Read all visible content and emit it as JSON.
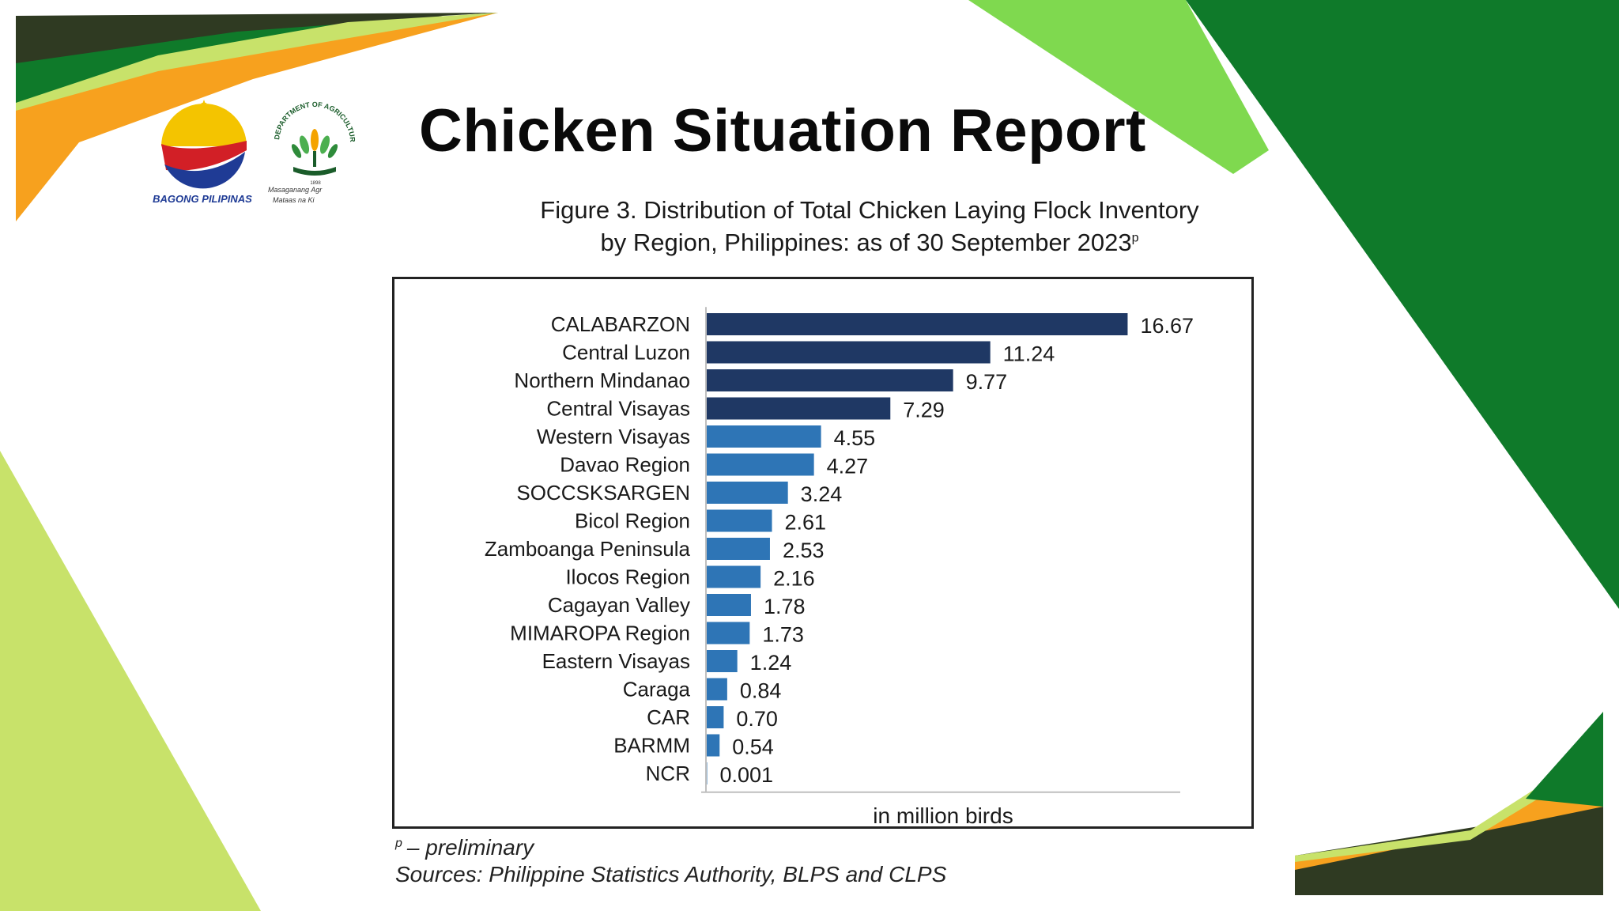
{
  "header": {
    "title": "Chicken Situation Report",
    "logos": {
      "bagong_pilipinas_text": "BAGONG PILIPINAS",
      "da_ring_text": "DEPARTMENT OF AGRICULTURE",
      "da_year": "1898",
      "da_tagline_1": "Masaganang Agr",
      "da_tagline_2": "Mataas na Ki"
    }
  },
  "colors": {
    "dark_green": "#0f7a2a",
    "light_green": "#7fd94f",
    "pale_green": "#c8e26a",
    "orange": "#f7a11e",
    "dark_olive": "#2f3a22",
    "bar_dark": "#1f3864",
    "bar_light": "#2e75b6"
  },
  "figure": {
    "title_line1": "Figure 3. Distribution of Total Chicken Laying Flock Inventory",
    "title_line2": "by Region, Philippines: as of 30 September 2023",
    "title_sup": "p"
  },
  "chart_data": {
    "type": "bar",
    "orientation": "horizontal",
    "title": "Figure 3. Distribution of Total Chicken Laying Flock Inventory by Region, Philippines: as of 30 September 2023p",
    "xlabel": "in million birds",
    "ylabel": "",
    "categories": [
      "CALABARZON",
      "Central Luzon",
      "Northern Mindanao",
      "Central Visayas",
      "Western Visayas",
      "Davao Region",
      "SOCCSKSARGEN",
      "Bicol Region",
      "Zamboanga Peninsula",
      "Ilocos Region",
      "Cagayan Valley",
      "MIMAROPA Region",
      "Eastern Visayas",
      "Caraga",
      "CAR",
      "BARMM",
      "NCR"
    ],
    "values": [
      16.67,
      11.24,
      9.77,
      7.29,
      4.55,
      4.27,
      3.24,
      2.61,
      2.53,
      2.16,
      1.78,
      1.73,
      1.24,
      0.84,
      0.7,
      0.54,
      0.001
    ],
    "value_labels": [
      "16.67",
      "11.24",
      "9.77",
      "7.29",
      "4.55",
      "4.27",
      "3.24",
      "2.61",
      "2.53",
      "2.16",
      "1.78",
      "1.73",
      "1.24",
      "0.84",
      "0.70",
      "0.54",
      "0.001"
    ],
    "highlight_top_n": 4,
    "xlim": [
      0,
      20
    ],
    "grid": false,
    "legend": "none"
  },
  "footnotes": {
    "prelim_sup": "p",
    "prelim_text": "– preliminary",
    "sources": "Sources: Philippine Statistics Authority, BLPS and CLPS"
  }
}
